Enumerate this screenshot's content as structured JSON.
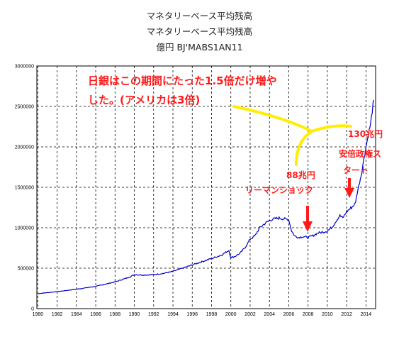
{
  "titles": [
    "マネタリーベース平均残高",
    "マネタリーベース平均残高",
    "億円 BJ'MABS1AN11"
  ],
  "annotations": {
    "main_line1": "日銀はこの期間にたった1.5倍だけ増や",
    "main_line2": "した。(アメリカは3倍)",
    "lehman_value": "88兆円",
    "lehman_label": "リーマンショック",
    "abe_value": "130兆円",
    "abe_label1": "安倍政権ス",
    "abe_label2": "タート"
  },
  "colors": {
    "series": "#0000cc",
    "annotation": "#ff1a1a",
    "highlight": "#ffee00"
  },
  "chart_data": {
    "type": "line",
    "title": "マネタリーベース平均残高",
    "xlabel": "",
    "ylabel": "",
    "xlim": [
      1979.9,
      2015.0
    ],
    "ylim": [
      0,
      3000000
    ],
    "grid": true,
    "x_ticks": [
      1980,
      1982,
      1984,
      1986,
      1988,
      1990,
      1992,
      1994,
      1996,
      1998,
      2000,
      2002,
      2004,
      2006,
      2008,
      2010,
      2012,
      2014
    ],
    "y_ticks": [
      0,
      500000,
      1000000,
      1500000,
      2000000,
      2500000,
      3000000
    ],
    "series": [
      {
        "x": [
          1980,
          1982,
          1984,
          1986,
          1988,
          1989.5,
          1990,
          1991,
          1992,
          1993,
          1994,
          1995,
          1996,
          1997,
          1998,
          1999,
          1999.8,
          2000,
          2000.5,
          2001,
          2001.5,
          2002,
          2002.5,
          2003,
          2003.5,
          2004,
          2004.5,
          2005,
          2005.5,
          2006,
          2006.3,
          2006.6,
          2007,
          2007.5,
          2008,
          2008.5,
          2009,
          2009.5,
          2010,
          2010.5,
          2011,
          2011.3,
          2011.6,
          2012,
          2012.5,
          2012.9,
          2013,
          2013.5,
          2014,
          2014.5,
          2014.8
        ],
        "values": [
          185000,
          210000,
          240000,
          275000,
          330000,
          390000,
          420000,
          415000,
          420000,
          435000,
          460000,
          500000,
          540000,
          580000,
          620000,
          660000,
          720000,
          630000,
          650000,
          690000,
          760000,
          860000,
          900000,
          1000000,
          1050000,
          1090000,
          1110000,
          1120000,
          1110000,
          1100000,
          960000,
          900000,
          880000,
          890000,
          880000,
          900000,
          935000,
          945000,
          960000,
          1010000,
          1100000,
          1150000,
          1120000,
          1200000,
          1250000,
          1300000,
          1380000,
          1650000,
          2000000,
          2300000,
          2580000
        ]
      }
    ]
  }
}
